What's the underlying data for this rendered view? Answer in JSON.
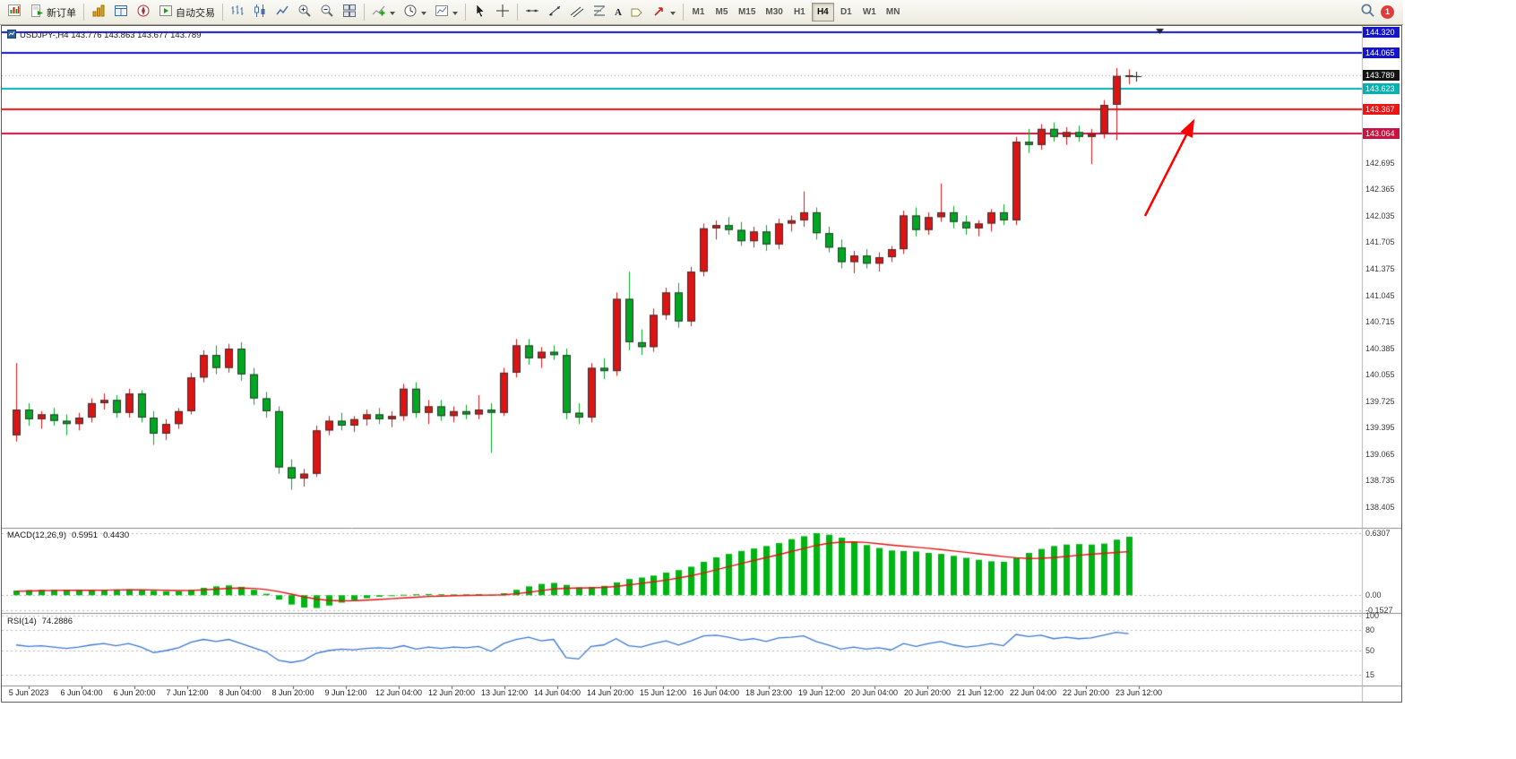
{
  "toolbar": {
    "new_order_label": "新订单",
    "auto_trading_label": "自动交易",
    "text_tool_glyph": "A",
    "timeframes": [
      "M1",
      "M5",
      "M15",
      "M30",
      "H1",
      "H4",
      "D1",
      "W1",
      "MN"
    ],
    "active_timeframe": "H4",
    "notification_badge": "1"
  },
  "chart": {
    "title": "USDJPY-,H4 143.776 143.863 143.677 143.789",
    "symbol": "USDJPY-",
    "period": "H4"
  },
  "indicators": {
    "macd": {
      "label": "MACD(12,26,9)",
      "value": "0.5951",
      "signal_value": "0.4430"
    },
    "rsi": {
      "label": "RSI(14)",
      "value": "74.2886"
    }
  },
  "annotation_arrow": {
    "color": "#ff0000"
  },
  "chart_data": [
    {
      "type": "candlestick",
      "name": "USDJPY- H4 price panel",
      "bull_color": "#dc1414",
      "bear_color": "#00a822",
      "price_range": [
        138.157,
        144.381
      ],
      "y_ticks": [
        "142.695",
        "142.365",
        "142.035",
        "141.705",
        "141.375",
        "141.045",
        "140.715",
        "140.385",
        "140.055",
        "139.725",
        "139.395",
        "139.065",
        "138.735",
        "138.405"
      ],
      "level_lines": [
        {
          "label": "144.320",
          "price": 144.32,
          "box": "#1414cc",
          "line": "#1414cc",
          "width": 2
        },
        {
          "label": "144.065",
          "price": 144.065,
          "box": "#1414cc",
          "line": "#1414cc",
          "width": 2
        },
        {
          "label": "143.789",
          "price": 143.789,
          "box": "#141414",
          "line": "#9a9a9a",
          "width": 1,
          "dash": [
            1,
            3
          ]
        },
        {
          "label": "143.623",
          "price": 143.623,
          "box": "#00b2b2",
          "line": "#00b2b2",
          "width": 2
        },
        {
          "label": "143.367",
          "price": 143.367,
          "box": "#ee1414",
          "line": "#ee1414",
          "width": 2
        },
        {
          "label": "143.064",
          "price": 143.064,
          "box": "#cc1140",
          "line": "#cc1140",
          "width": 2
        }
      ],
      "x_labels": [
        "5 Jun 2023",
        "6 Jun 04:00",
        "6 Jun 20:00",
        "7 Jun 12:00",
        "8 Jun 04:00",
        "8 Jun 20:00",
        "9 Jun 12:00",
        "12 Jun 04:00",
        "12 Jun 20:00",
        "13 Jun 12:00",
        "14 Jun 04:00",
        "14 Jun 20:00",
        "15 Jun 12:00",
        "16 Jun 04:00",
        "18 Jun 23:00",
        "19 Jun 12:00",
        "20 Jun 04:00",
        "20 Jun 20:00",
        "21 Jun 12:00",
        "22 Jun 04:00",
        "22 Jun 20:00",
        "23 Jun 12:00"
      ],
      "candles": [
        [
          139.3,
          140.2,
          139.22,
          139.62
        ],
        [
          139.62,
          139.7,
          139.42,
          139.5
        ],
        [
          139.5,
          139.6,
          139.38,
          139.56
        ],
        [
          139.56,
          139.64,
          139.42,
          139.48
        ],
        [
          139.48,
          139.56,
          139.3,
          139.44
        ],
        [
          139.44,
          139.58,
          139.36,
          139.52
        ],
        [
          139.52,
          139.76,
          139.46,
          139.7
        ],
        [
          139.7,
          139.82,
          139.62,
          139.74
        ],
        [
          139.74,
          139.8,
          139.52,
          139.58
        ],
        [
          139.58,
          139.88,
          139.52,
          139.82
        ],
        [
          139.82,
          139.86,
          139.46,
          139.52
        ],
        [
          139.52,
          139.6,
          139.18,
          139.32
        ],
        [
          139.32,
          139.5,
          139.24,
          139.44
        ],
        [
          139.44,
          139.64,
          139.38,
          139.6
        ],
        [
          139.6,
          140.08,
          139.56,
          140.02
        ],
        [
          140.02,
          140.36,
          139.96,
          140.3
        ],
        [
          140.3,
          140.42,
          140.06,
          140.14
        ],
        [
          140.14,
          140.44,
          140.08,
          140.38
        ],
        [
          140.38,
          140.46,
          139.98,
          140.06
        ],
        [
          140.06,
          140.14,
          139.68,
          139.76
        ],
        [
          139.76,
          139.84,
          139.52,
          139.6
        ],
        [
          139.6,
          139.66,
          138.82,
          138.9
        ],
        [
          138.9,
          139.0,
          138.62,
          138.76
        ],
        [
          138.76,
          138.88,
          138.66,
          138.82
        ],
        [
          138.82,
          139.42,
          138.78,
          139.36
        ],
        [
          139.36,
          139.54,
          139.3,
          139.48
        ],
        [
          139.48,
          139.58,
          139.36,
          139.42
        ],
        [
          139.42,
          139.54,
          139.34,
          139.5
        ],
        [
          139.5,
          139.62,
          139.42,
          139.56
        ],
        [
          139.56,
          139.64,
          139.44,
          139.5
        ],
        [
          139.5,
          139.6,
          139.4,
          139.54
        ],
        [
          139.54,
          139.94,
          139.48,
          139.88
        ],
        [
          139.88,
          139.96,
          139.52,
          139.58
        ],
        [
          139.58,
          139.74,
          139.44,
          139.66
        ],
        [
          139.66,
          139.74,
          139.48,
          139.54
        ],
        [
          139.54,
          139.66,
          139.46,
          139.6
        ],
        [
          139.6,
          139.68,
          139.5,
          139.56
        ],
        [
          139.56,
          139.8,
          139.5,
          139.62
        ],
        [
          139.62,
          139.7,
          139.08,
          139.58
        ],
        [
          139.58,
          140.14,
          139.54,
          140.08
        ],
        [
          140.08,
          140.5,
          140.02,
          140.42
        ],
        [
          140.42,
          140.5,
          140.18,
          140.26
        ],
        [
          140.26,
          140.4,
          140.14,
          140.34
        ],
        [
          140.34,
          140.42,
          140.24,
          140.3
        ],
        [
          140.3,
          140.38,
          139.5,
          139.58
        ],
        [
          139.58,
          139.7,
          139.44,
          139.52
        ],
        [
          139.52,
          140.2,
          139.46,
          140.14
        ],
        [
          140.14,
          140.26,
          140.0,
          140.1
        ],
        [
          140.1,
          141.08,
          140.04,
          141.0
        ],
        [
          141.0,
          141.34,
          140.36,
          140.46
        ],
        [
          140.46,
          140.62,
          140.3,
          140.4
        ],
        [
          140.4,
          140.88,
          140.34,
          140.8
        ],
        [
          140.8,
          141.14,
          140.74,
          141.08
        ],
        [
          141.08,
          141.2,
          140.64,
          140.72
        ],
        [
          140.72,
          141.4,
          140.66,
          141.34
        ],
        [
          141.34,
          141.94,
          141.28,
          141.88
        ],
        [
          141.88,
          141.98,
          141.74,
          141.92
        ],
        [
          141.92,
          142.02,
          141.8,
          141.86
        ],
        [
          141.86,
          141.96,
          141.66,
          141.72
        ],
        [
          141.72,
          141.9,
          141.64,
          141.84
        ],
        [
          141.84,
          141.92,
          141.6,
          141.68
        ],
        [
          141.68,
          142.0,
          141.62,
          141.94
        ],
        [
          141.94,
          142.04,
          141.84,
          141.98
        ],
        [
          141.98,
          142.34,
          141.9,
          142.08
        ],
        [
          142.08,
          142.14,
          141.74,
          141.82
        ],
        [
          141.82,
          141.9,
          141.58,
          141.64
        ],
        [
          141.64,
          141.74,
          141.38,
          141.46
        ],
        [
          141.46,
          141.6,
          141.32,
          141.54
        ],
        [
          141.54,
          141.62,
          141.38,
          141.44
        ],
        [
          141.44,
          141.58,
          141.34,
          141.52
        ],
        [
          141.52,
          141.66,
          141.46,
          141.62
        ],
        [
          141.62,
          142.1,
          141.56,
          142.04
        ],
        [
          142.04,
          142.14,
          141.78,
          141.86
        ],
        [
          141.86,
          142.08,
          141.8,
          142.02
        ],
        [
          142.02,
          142.44,
          141.96,
          142.08
        ],
        [
          142.08,
          142.16,
          141.88,
          141.96
        ],
        [
          141.96,
          142.04,
          141.8,
          141.88
        ],
        [
          141.88,
          141.98,
          141.78,
          141.94
        ],
        [
          141.94,
          142.12,
          141.84,
          142.08
        ],
        [
          142.08,
          142.18,
          141.92,
          141.98
        ],
        [
          141.98,
          143.02,
          141.92,
          142.96
        ],
        [
          142.96,
          143.12,
          142.82,
          142.92
        ],
        [
          142.92,
          143.18,
          142.86,
          143.12
        ],
        [
          143.12,
          143.2,
          142.96,
          143.02
        ],
        [
          143.02,
          143.14,
          142.92,
          143.08
        ],
        [
          143.08,
          143.16,
          142.96,
          143.02
        ],
        [
          143.02,
          143.12,
          142.68,
          143.06
        ],
        [
          143.06,
          143.48,
          143.0,
          143.42
        ],
        [
          143.42,
          143.88,
          142.98,
          143.78
        ],
        [
          143.776,
          143.863,
          143.677,
          143.789
        ]
      ]
    },
    {
      "type": "bar",
      "name": "MACD(12,26,9)",
      "current": 0.5951,
      "signal_current": 0.443,
      "axis": [
        "0.6307",
        "0.00",
        "-0.1527"
      ],
      "bar_color": "#00b414",
      "signal_color": "#e01414",
      "values": [
        0.048,
        0.052,
        0.055,
        0.056,
        0.052,
        0.05,
        0.052,
        0.056,
        0.058,
        0.06,
        0.055,
        0.045,
        0.038,
        0.04,
        0.055,
        0.075,
        0.09,
        0.1,
        0.085,
        0.055,
        0.015,
        -0.045,
        -0.095,
        -0.125,
        -0.13,
        -0.105,
        -0.075,
        -0.05,
        -0.03,
        -0.015,
        -0.005,
        0.005,
        0.01,
        0.012,
        0.01,
        0.008,
        0.008,
        0.01,
        0.005,
        0.02,
        0.055,
        0.09,
        0.115,
        0.125,
        0.105,
        0.08,
        0.085,
        0.095,
        0.13,
        0.165,
        0.18,
        0.2,
        0.23,
        0.255,
        0.29,
        0.34,
        0.385,
        0.42,
        0.45,
        0.475,
        0.5,
        0.53,
        0.57,
        0.6,
        0.631,
        0.615,
        0.585,
        0.545,
        0.51,
        0.48,
        0.455,
        0.45,
        0.445,
        0.43,
        0.42,
        0.4,
        0.38,
        0.36,
        0.345,
        0.34,
        0.38,
        0.43,
        0.47,
        0.5,
        0.515,
        0.52,
        0.515,
        0.525,
        0.565,
        0.5951
      ],
      "signal": [
        0.04,
        0.043,
        0.046,
        0.049,
        0.05,
        0.05,
        0.05,
        0.051,
        0.053,
        0.055,
        0.055,
        0.053,
        0.05,
        0.048,
        0.049,
        0.054,
        0.062,
        0.07,
        0.073,
        0.069,
        0.058,
        0.037,
        0.011,
        -0.016,
        -0.039,
        -0.052,
        -0.057,
        -0.055,
        -0.05,
        -0.043,
        -0.035,
        -0.027,
        -0.02,
        -0.013,
        -0.009,
        -0.005,
        -0.003,
        0.0,
        0.001,
        0.005,
        0.015,
        0.03,
        0.047,
        0.063,
        0.071,
        0.073,
        0.075,
        0.079,
        0.089,
        0.104,
        0.119,
        0.136,
        0.154,
        0.175,
        0.198,
        0.226,
        0.258,
        0.29,
        0.322,
        0.353,
        0.382,
        0.412,
        0.444,
        0.475,
        0.506,
        0.528,
        0.54,
        0.542,
        0.536,
        0.524,
        0.51,
        0.498,
        0.488,
        0.477,
        0.464,
        0.45,
        0.436,
        0.421,
        0.407,
        0.393,
        0.381,
        0.374,
        0.375,
        0.383,
        0.394,
        0.406,
        0.417,
        0.426,
        0.435,
        0.443
      ]
    },
    {
      "type": "line",
      "name": "RSI(14)",
      "current": 74.2886,
      "axis": [
        "100",
        "80",
        "50",
        "15"
      ],
      "line_color": "#3c78d2",
      "values": [
        58,
        56,
        57,
        55,
        53,
        55,
        58,
        60,
        57,
        60,
        55,
        47,
        50,
        54,
        62,
        66,
        63,
        66,
        60,
        54,
        48,
        36,
        33,
        36,
        46,
        50,
        52,
        51,
        53,
        54,
        53,
        57,
        52,
        55,
        53,
        55,
        54,
        56,
        49,
        60,
        66,
        69,
        64,
        66,
        40,
        38,
        56,
        58,
        67,
        57,
        55,
        60,
        64,
        58,
        64,
        71,
        72,
        69,
        65,
        67,
        63,
        68,
        69,
        71,
        63,
        58,
        52,
        55,
        52,
        54,
        51,
        60,
        56,
        60,
        63,
        58,
        55,
        57,
        60,
        57,
        73,
        70,
        72,
        67,
        69,
        67,
        68,
        72,
        76,
        74.2886
      ]
    }
  ]
}
